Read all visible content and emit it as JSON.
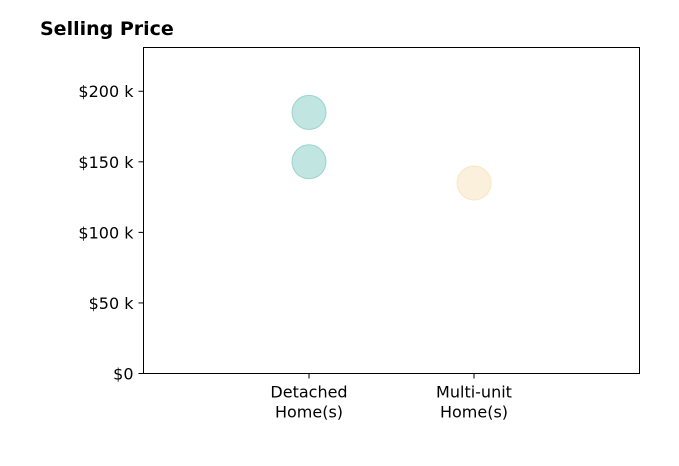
{
  "chart_data": {
    "type": "scatter",
    "title": "Selling Price",
    "xlabel": "",
    "ylabel": "",
    "categories": [
      [
        "Detached",
        "Home(s)"
      ],
      [
        "Multi-unit",
        "Home(s)"
      ]
    ],
    "ylim": [
      0,
      231000
    ],
    "yticks": [
      {
        "value": 0,
        "label": "$0"
      },
      {
        "value": 50000,
        "label": "$50 k"
      },
      {
        "value": 100000,
        "label": "$100 k"
      },
      {
        "value": 150000,
        "label": "$150 k"
      },
      {
        "value": 200000,
        "label": "$200 k"
      }
    ],
    "grid": false,
    "legend": "none",
    "series": [
      {
        "category_index": 0,
        "values": [
          185000,
          150000
        ],
        "color": "#8ecfc8"
      },
      {
        "category_index": 1,
        "values": [
          135000
        ],
        "color": "#f8e3bd"
      }
    ]
  }
}
